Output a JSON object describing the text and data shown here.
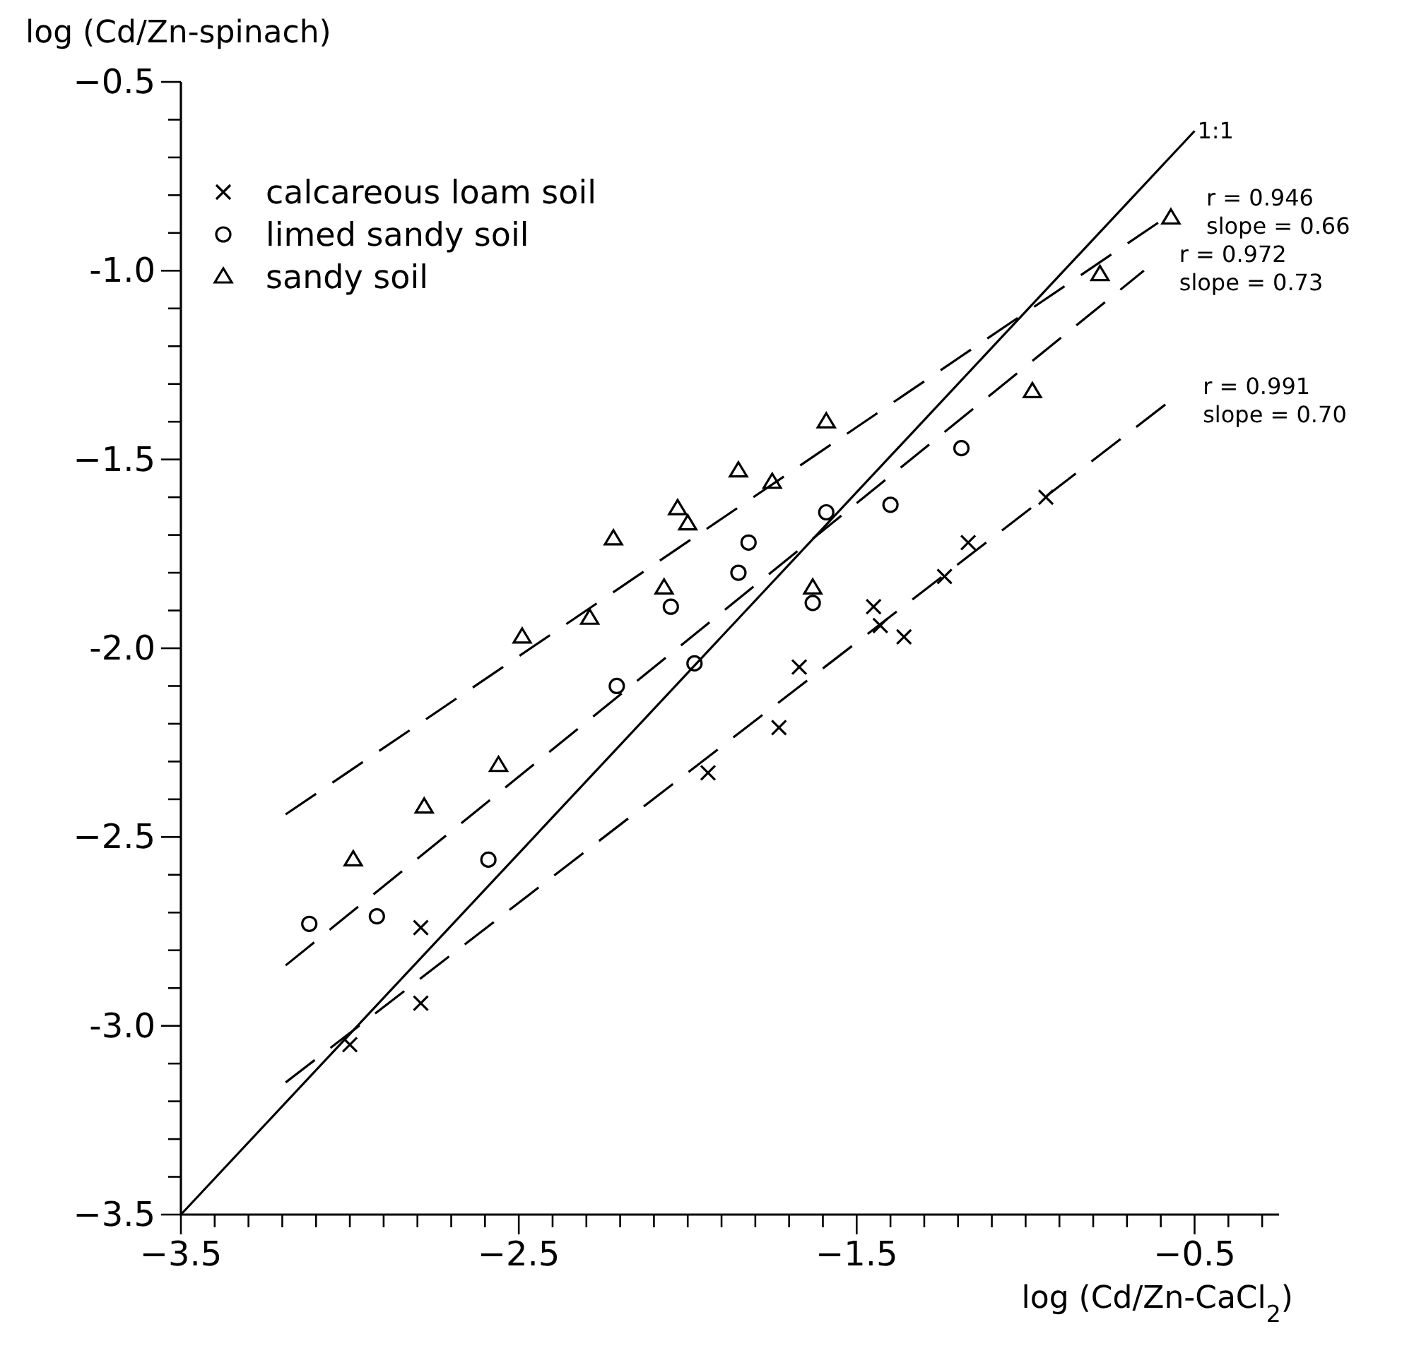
{
  "chart_data": {
    "type": "scatter",
    "xlabel": "log (Cd/Zn-CaCl$_{2}$)",
    "ylabel": "log (Cd/Zn-spinach)",
    "xlim": [
      -3.5,
      -0.25
    ],
    "ylim": [
      -3.5,
      -0.5
    ],
    "xticks": [
      -3.5,
      {
        "value": -3.4,
        "label": null
      },
      {
        "value": -3.3,
        "label": null
      },
      {
        "value": -3.2,
        "label": null
      },
      {
        "value": -3.1,
        "label": null
      },
      {
        "value": -3.0,
        "label": null
      },
      {
        "value": -2.9,
        "label": null
      },
      {
        "value": -2.8,
        "label": null
      },
      {
        "value": -2.7,
        "label": null
      },
      {
        "value": -2.6,
        "label": null
      },
      -2.5,
      {
        "value": -2.4,
        "label": null
      },
      {
        "value": -2.3,
        "label": null
      },
      {
        "value": -2.2,
        "label": null
      },
      {
        "value": -2.1,
        "label": null
      },
      {
        "value": -2.0,
        "label": null
      },
      {
        "value": -1.9,
        "label": null
      },
      {
        "value": -1.8,
        "label": null
      },
      {
        "value": -1.7,
        "label": null
      },
      {
        "value": -1.6,
        "label": null
      },
      -1.5,
      {
        "value": -1.4,
        "label": null
      },
      {
        "value": -1.3,
        "label": null
      },
      {
        "value": -1.2,
        "label": null
      },
      {
        "value": -1.1,
        "label": null
      },
      {
        "value": -1.0,
        "label": null
      },
      {
        "value": -0.9,
        "label": null
      },
      {
        "value": -0.8,
        "label": null
      },
      {
        "value": -0.7,
        "label": null
      },
      {
        "value": -0.6,
        "label": null
      },
      -0.5,
      {
        "value": -0.4,
        "label": null
      },
      {
        "value": -0.3,
        "label": null
      }
    ],
    "yticks": [
      -3.5,
      {
        "value": -3.4,
        "label": null
      },
      {
        "value": -3.3,
        "label": null
      },
      {
        "value": -3.2,
        "label": null
      },
      {
        "value": -3.1,
        "label": null
      },
      {
        "value": -3.0,
        "label": "-3.0"
      },
      {
        "value": -2.9,
        "label": null
      },
      {
        "value": -2.8,
        "label": null
      },
      {
        "value": -2.7,
        "label": null
      },
      {
        "value": -2.6,
        "label": null
      },
      -2.5,
      {
        "value": -2.4,
        "label": null
      },
      {
        "value": -2.3,
        "label": null
      },
      {
        "value": -2.2,
        "label": null
      },
      {
        "value": -2.1,
        "label": null
      },
      {
        "value": -2.0,
        "label": "-2.0"
      },
      {
        "value": -1.9,
        "label": null
      },
      {
        "value": -1.8,
        "label": null
      },
      {
        "value": -1.7,
        "label": null
      },
      {
        "value": -1.6,
        "label": null
      },
      -1.5,
      {
        "value": -1.4,
        "label": null
      },
      {
        "value": -1.3,
        "label": null
      },
      {
        "value": -1.2,
        "label": null
      },
      {
        "value": -1.1,
        "label": null
      },
      {
        "value": -1.0,
        "label": "-1.0"
      },
      {
        "value": -0.9,
        "label": null
      },
      {
        "value": -0.8,
        "label": null
      },
      {
        "value": -0.7,
        "label": null
      },
      {
        "value": -0.6,
        "label": null
      },
      -0.5
    ],
    "grid": false,
    "legend": "top left",
    "series": [
      {
        "name": "calcareous loam soil",
        "type": "scatter",
        "marker": "cross",
        "color": "#000000",
        "x": [
          -3.0,
          -2.79,
          -2.79,
          -1.94,
          -1.73,
          -1.67,
          -1.45,
          -1.43,
          -1.36,
          -1.24,
          -1.17,
          -0.94
        ],
        "values": [
          -3.05,
          -2.94,
          -2.74,
          -2.33,
          -2.21,
          -2.05,
          -1.89,
          -1.94,
          -1.97,
          -1.81,
          -1.72,
          -1.6
        ]
      },
      {
        "name": "limed sandy soil",
        "type": "scatter",
        "marker": "circle",
        "color": "#000000",
        "x": [
          -3.12,
          -2.92,
          -2.59,
          -2.21,
          -2.05,
          -1.98,
          -1.85,
          -1.82,
          -1.63,
          -1.59,
          -1.4,
          -1.19
        ],
        "values": [
          -2.73,
          -2.71,
          -2.56,
          -2.1,
          -1.89,
          -2.04,
          -1.8,
          -1.72,
          -1.88,
          -1.64,
          -1.62,
          -1.47
        ]
      },
      {
        "name": "sandy soil",
        "type": "scatter",
        "marker": "triangle",
        "color": "#000000",
        "x": [
          -2.99,
          -2.78,
          -2.56,
          -2.49,
          -2.29,
          -2.22,
          -2.07,
          -2.03,
          -2.0,
          -1.85,
          -1.75,
          -1.63,
          -1.59,
          -0.98,
          -0.78,
          -0.57
        ],
        "values": [
          -2.56,
          -2.42,
          -2.31,
          -1.97,
          -1.92,
          -1.71,
          -1.84,
          -1.63,
          -1.67,
          -1.53,
          -1.56,
          -1.84,
          -1.4,
          -1.32,
          -1.01,
          -0.86
        ]
      },
      {
        "type": "line",
        "line_style": "solid",
        "marker": "none",
        "color": "#000000",
        "x": [
          -3.5,
          -0.5
        ],
        "values": [
          -3.5,
          -0.63
        ]
      },
      {
        "type": "line",
        "line_style": "dashed",
        "marker": "none",
        "color": "#000000",
        "x": [
          -3.19,
          -0.57
        ],
        "values": [
          -2.44,
          -0.85
        ]
      },
      {
        "type": "line",
        "line_style": "dashed",
        "marker": "none",
        "color": "#000000",
        "x": [
          -3.19,
          -0.65
        ],
        "values": [
          -2.84,
          -1.0
        ]
      },
      {
        "type": "line",
        "line_style": "dashed",
        "marker": "none",
        "color": "#000000",
        "x": [
          -3.19,
          -0.58
        ],
        "values": [
          -3.15,
          -1.35
        ]
      }
    ],
    "annotations": [
      {
        "text": "1:1",
        "x": -0.5,
        "y": -0.63
      },
      "r = 0.946",
      "slope = 0.66",
      "r = 0.972",
      "slope = 0.73",
      "r = 0.991",
      "slope = 0.70"
    ]
  }
}
